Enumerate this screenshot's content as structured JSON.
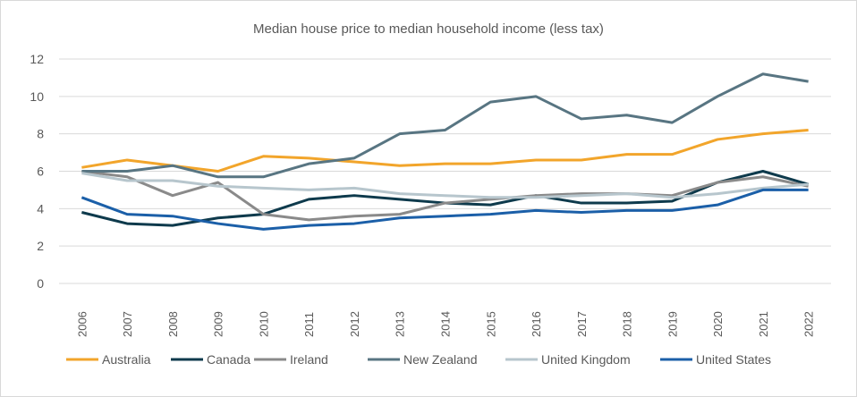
{
  "chart_data": {
    "type": "line",
    "title": "Median house price to median household income (less tax)",
    "xlabel": "",
    "ylabel": "",
    "ylim": [
      0,
      12
    ],
    "yticks": [
      0,
      2,
      4,
      6,
      8,
      10,
      12
    ],
    "grid": true,
    "legend_position": "bottom",
    "categories": [
      "2006",
      "2007",
      "2008",
      "2009",
      "2010",
      "2011",
      "2012",
      "2013",
      "2014",
      "2015",
      "2016",
      "2017",
      "2018",
      "2019",
      "2020",
      "2021",
      "2022"
    ],
    "series": [
      {
        "name": "Australia",
        "color": "#f2a52b",
        "values": [
          6.2,
          6.6,
          6.3,
          6.0,
          6.8,
          6.7,
          6.5,
          6.3,
          6.4,
          6.4,
          6.6,
          6.6,
          6.9,
          6.9,
          7.7,
          8.0,
          8.2
        ]
      },
      {
        "name": "Canada",
        "color": "#0e3a4c",
        "values": [
          3.8,
          3.2,
          3.1,
          3.5,
          3.7,
          4.5,
          4.7,
          4.5,
          4.3,
          4.2,
          4.7,
          4.3,
          4.3,
          4.4,
          5.4,
          6.0,
          5.3
        ]
      },
      {
        "name": "Ireland",
        "color": "#8a8a8a",
        "values": [
          6.0,
          5.7,
          4.7,
          5.4,
          3.7,
          3.4,
          3.6,
          3.7,
          4.3,
          4.5,
          4.7,
          4.8,
          4.8,
          4.7,
          5.4,
          5.7,
          5.2
        ]
      },
      {
        "name": "New Zealand",
        "color": "#587582",
        "values": [
          6.0,
          6.0,
          6.3,
          5.7,
          5.7,
          6.4,
          6.7,
          8.0,
          8.2,
          9.7,
          10.0,
          8.8,
          9.0,
          8.6,
          10.0,
          11.2,
          10.8
        ]
      },
      {
        "name": "United Kingdom",
        "color": "#b7c6cd",
        "values": [
          5.9,
          5.5,
          5.5,
          5.2,
          5.1,
          5.0,
          5.1,
          4.8,
          4.7,
          4.6,
          4.6,
          4.7,
          4.8,
          4.6,
          4.8,
          5.1,
          5.3
        ]
      },
      {
        "name": "United States",
        "color": "#1b5fa8",
        "values": [
          4.6,
          3.7,
          3.6,
          3.2,
          2.9,
          3.1,
          3.2,
          3.5,
          3.6,
          3.7,
          3.9,
          3.8,
          3.9,
          3.9,
          4.2,
          5.0,
          5.0
        ]
      }
    ]
  }
}
